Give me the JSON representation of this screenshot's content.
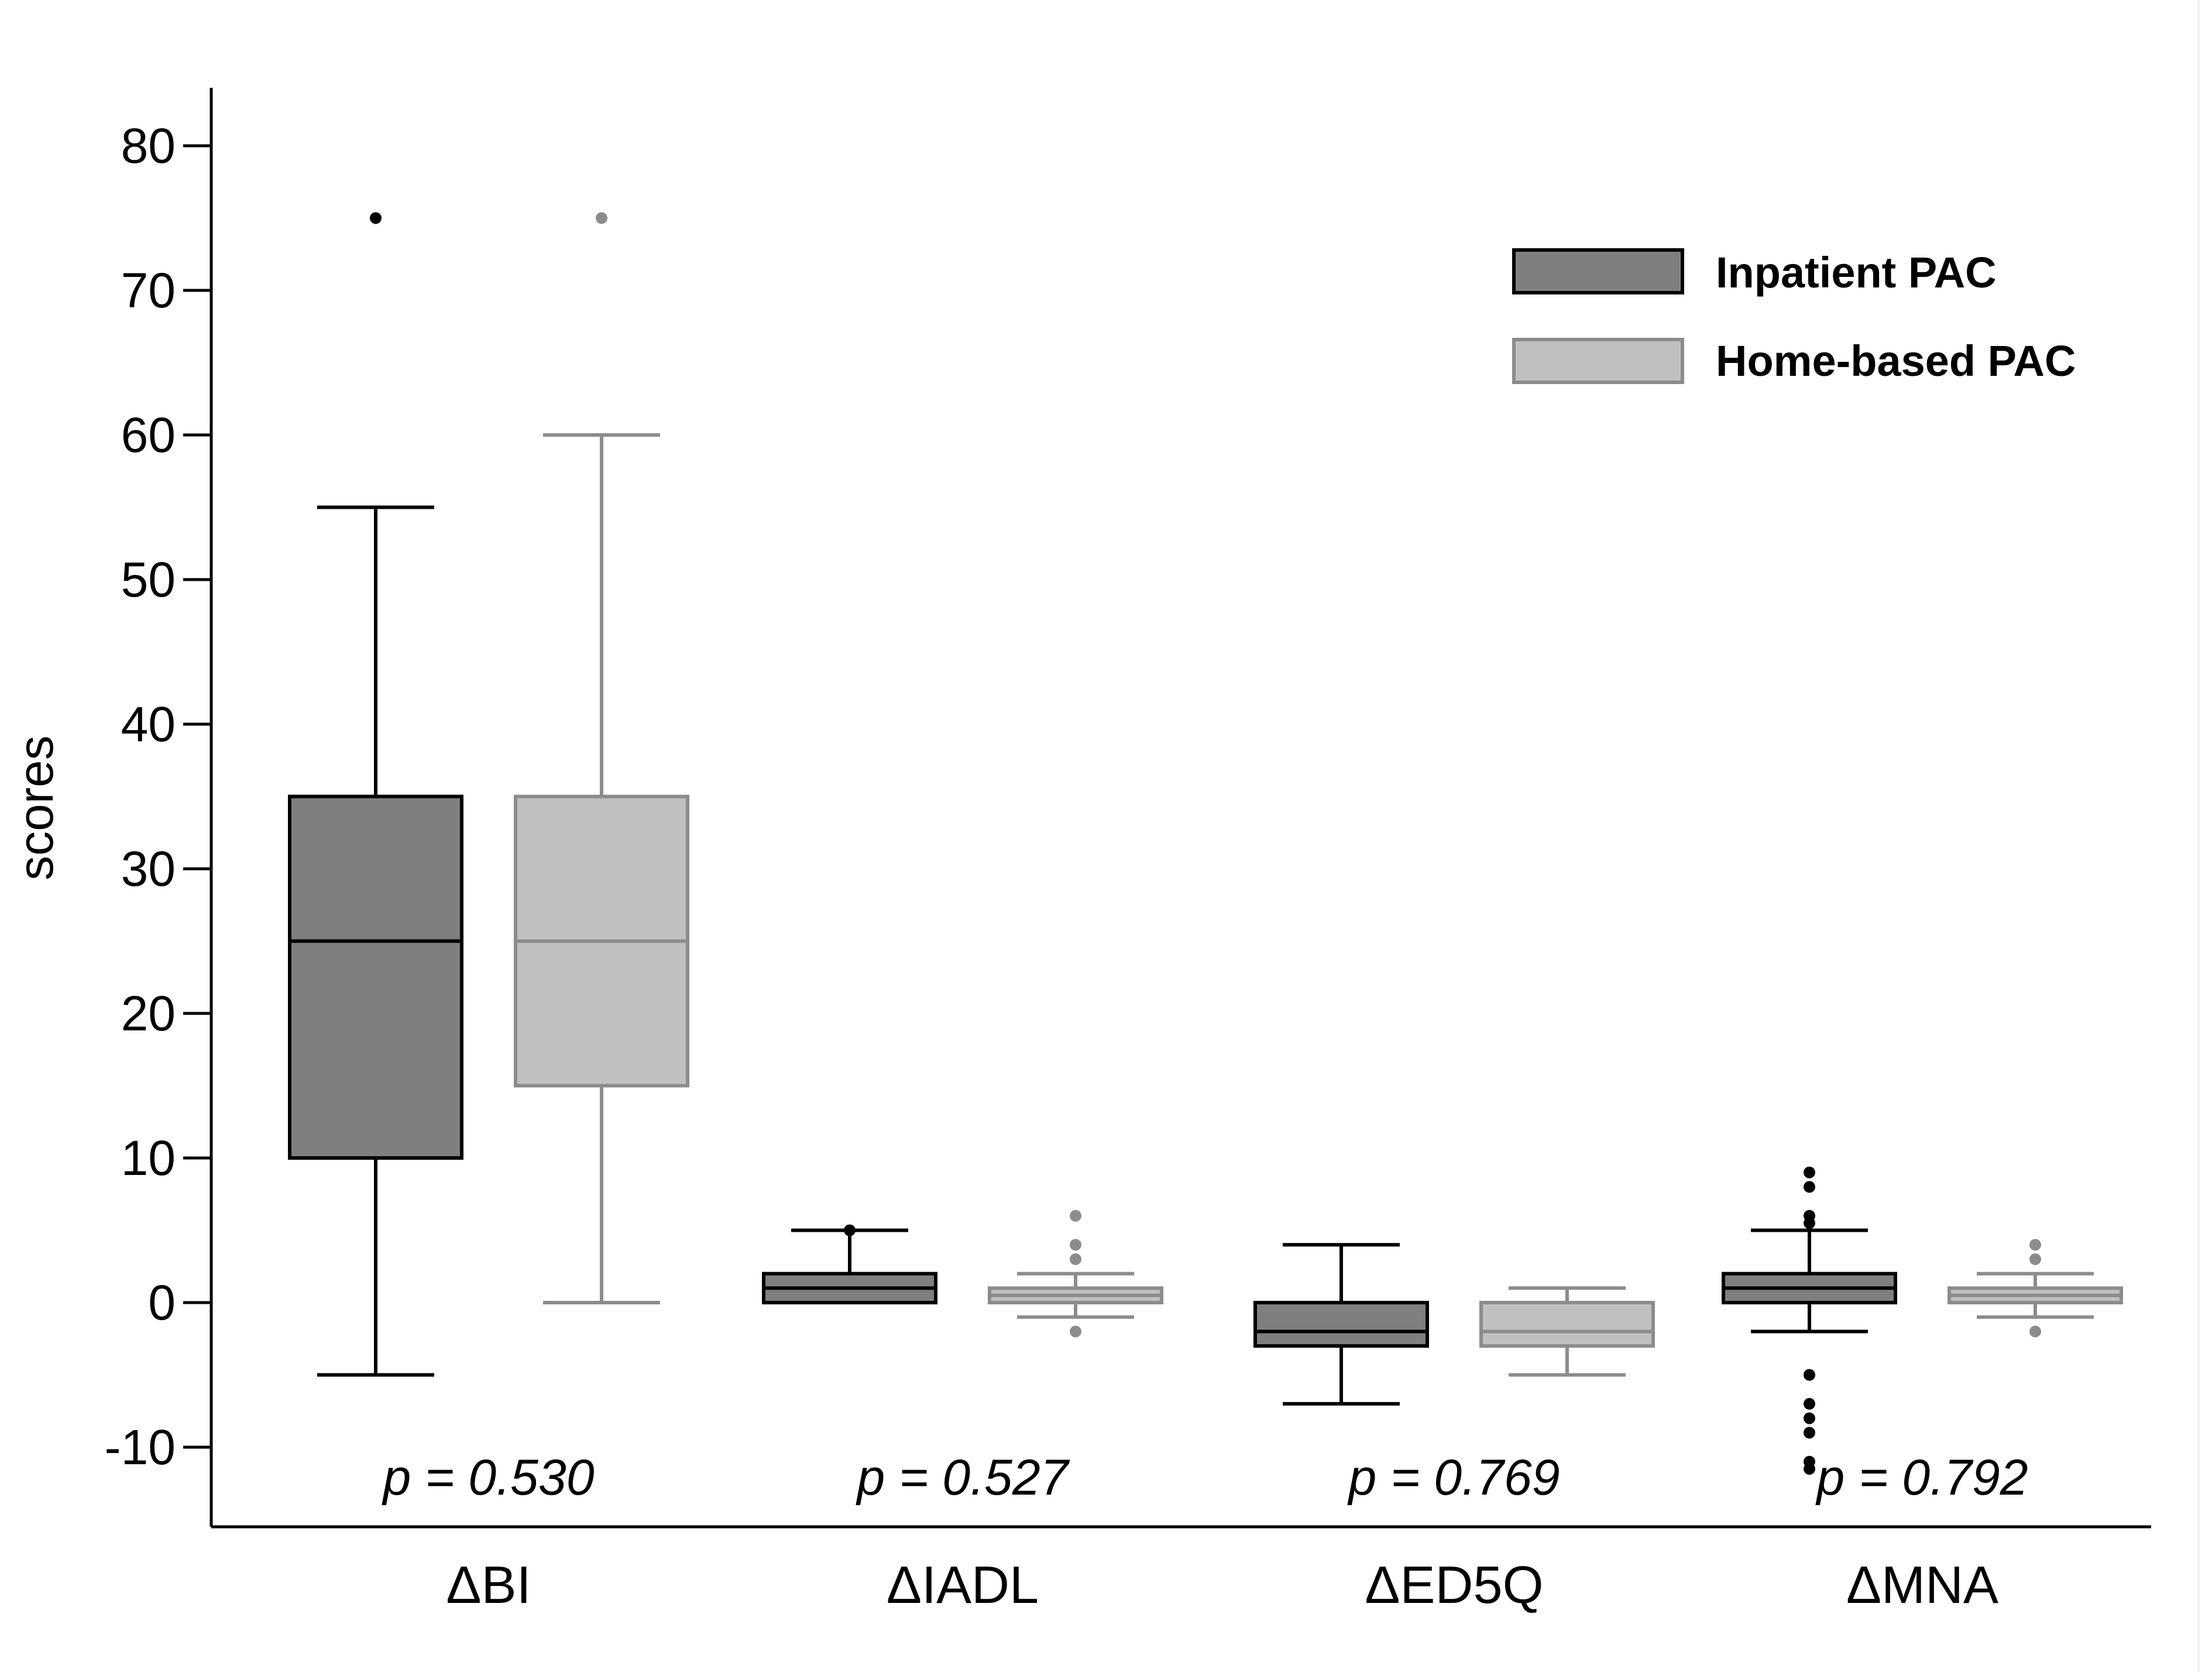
{
  "chart_data": {
    "type": "box",
    "ylabel": "scores",
    "ylim": [
      -15,
      84
    ],
    "yticks": [
      80,
      70,
      60,
      50,
      40,
      30,
      20,
      10,
      0,
      -10
    ],
    "ytick_labels": [
      "80",
      "70",
      "60",
      "50",
      "40",
      "30",
      "20",
      "10",
      "0",
      "-10"
    ],
    "categories": [
      "ΔBI",
      "ΔIADL",
      "ΔED5Q",
      "ΔMNA"
    ],
    "p_values": [
      "p = 0.530",
      "p = 0.527",
      "p = 0.769",
      "p = 0.792"
    ],
    "legend": {
      "position": "top-right"
    },
    "series": [
      {
        "name": "Inpatient PAC",
        "fill": "#7f7f7f",
        "stroke": "#000000",
        "boxes": [
          {
            "whisker_low": -5,
            "q1": 10,
            "median": 25,
            "q3": 35,
            "whisker_high": 55,
            "outliers": [
              75
            ]
          },
          {
            "whisker_low": 0,
            "q1": 0,
            "median": 1,
            "q3": 2,
            "whisker_high": 5,
            "outliers": [
              5
            ]
          },
          {
            "whisker_low": -7,
            "q1": -3,
            "median": -2,
            "q3": 0,
            "whisker_high": 4,
            "outliers": []
          },
          {
            "whisker_low": -2,
            "q1": 0,
            "median": 1,
            "q3": 2,
            "whisker_high": 5,
            "outliers": [
              9,
              8,
              6,
              5.5,
              -5,
              -7,
              -8,
              -9,
              -11,
              -11.5
            ]
          }
        ]
      },
      {
        "name": "Home-based PAC",
        "fill": "#c0c0c0",
        "stroke": "#8c8c8c",
        "boxes": [
          {
            "whisker_low": 0,
            "q1": 15,
            "median": 25,
            "q3": 35,
            "whisker_high": 60,
            "outliers": [
              75
            ]
          },
          {
            "whisker_low": -1,
            "q1": 0,
            "median": 0.5,
            "q3": 1,
            "whisker_high": 2,
            "outliers": [
              6,
              4,
              3,
              -2
            ]
          },
          {
            "whisker_low": -5,
            "q1": -3,
            "median": -2,
            "q3": 0,
            "whisker_high": 1,
            "outliers": []
          },
          {
            "whisker_low": -1,
            "q1": 0,
            "median": 0.5,
            "q3": 1,
            "whisker_high": 2,
            "outliers": [
              4,
              3,
              -2
            ]
          }
        ]
      }
    ]
  }
}
